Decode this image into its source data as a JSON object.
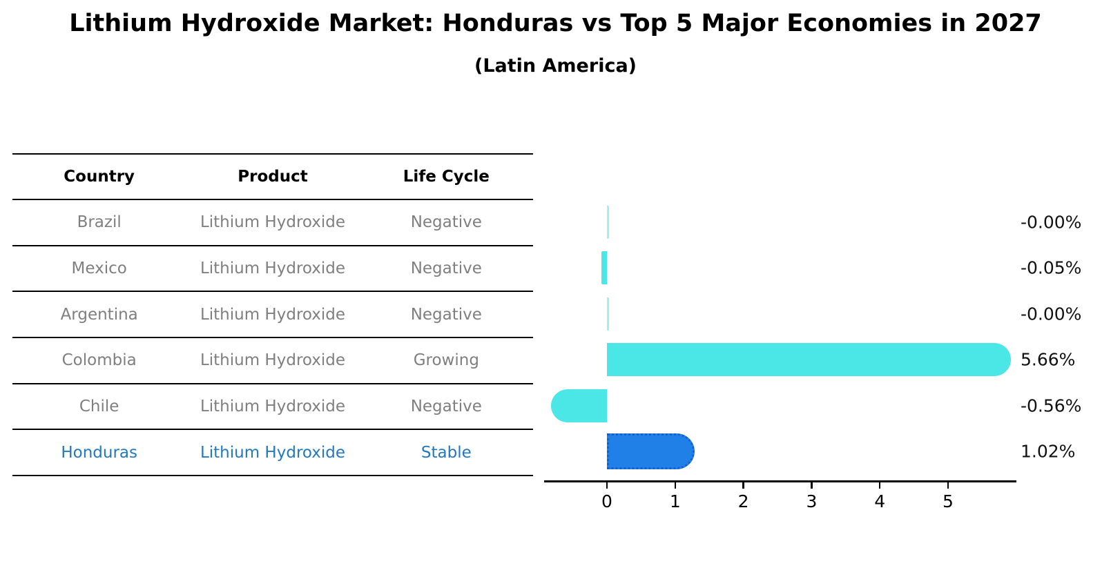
{
  "title": "Lithium Hydroxide Market: Honduras vs Top 5 Major Economies in 2027",
  "subtitle": "(Latin America)",
  "table": {
    "headers": [
      "Country",
      "Product",
      "Life Cycle"
    ],
    "rows": [
      {
        "country": "Brazil",
        "product": "Lithium Hydroxide",
        "life_cycle": "Negative",
        "highlight": false
      },
      {
        "country": "Mexico",
        "product": "Lithium Hydroxide",
        "life_cycle": "Negative",
        "highlight": false
      },
      {
        "country": "Argentina",
        "product": "Lithium Hydroxide",
        "life_cycle": "Negative",
        "highlight": false
      },
      {
        "country": "Colombia",
        "product": "Lithium Hydroxide",
        "life_cycle": "Growing",
        "highlight": false
      },
      {
        "country": "Chile",
        "product": "Lithium Hydroxide",
        "life_cycle": "Negative",
        "highlight": false
      },
      {
        "country": "Honduras",
        "product": "Lithium Hydroxide",
        "life_cycle": "Stable",
        "highlight": true
      }
    ]
  },
  "chart_data": {
    "type": "bar",
    "orientation": "horizontal",
    "categories": [
      "Brazil",
      "Mexico",
      "Argentina",
      "Colombia",
      "Chile",
      "Honduras"
    ],
    "values": [
      -0.0,
      -0.05,
      -0.0,
      5.66,
      -0.56,
      1.02
    ],
    "value_labels": [
      "-0.00%",
      "-0.05%",
      "-0.00%",
      "5.66%",
      "-0.56%",
      "1.02%"
    ],
    "x_ticks": [
      "0",
      "1",
      "2",
      "3",
      "4",
      "5"
    ],
    "xlim": [
      -0.92,
      6.0
    ],
    "grid": false,
    "legend": "none",
    "title": "",
    "xlabel": "",
    "ylabel": "",
    "bar_color": "#4BE6E6",
    "highlight_index": 5,
    "highlight_color": "#2080E8",
    "highlight_edge_color": "#1360CF",
    "highlight_text_color": "#2478bd",
    "axis_color": "#000000",
    "row_text_color": "#7f7f7f"
  }
}
